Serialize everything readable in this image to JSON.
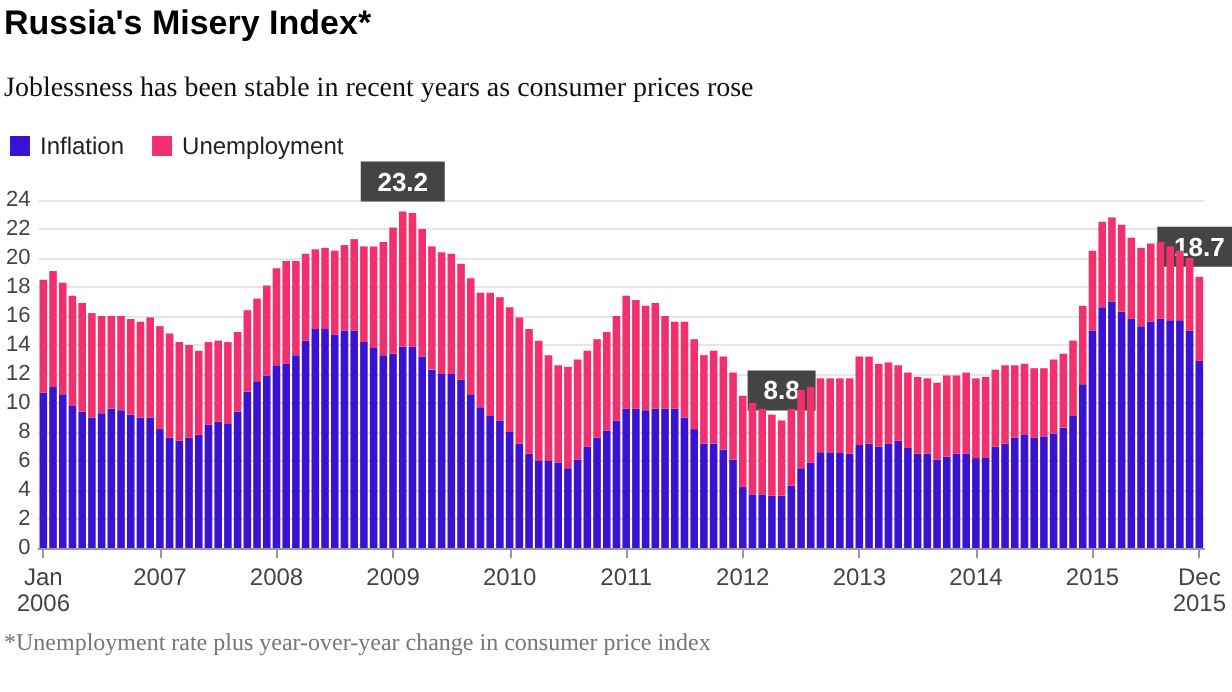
{
  "chart_data": {
    "type": "bar",
    "stacked": true,
    "title": "Russia's Misery Index*",
    "subtitle": "Joblessness has been stable in recent years as consumer prices rose",
    "annotations": [
      {
        "text": "23.2",
        "x": "2009-02",
        "y": 23.2
      },
      {
        "text": "8.8",
        "x": "2012-05",
        "y": 8.8
      },
      {
        "text": "18.7",
        "x": "2015-12",
        "y": 18.7
      },
      "*Unemployment rate plus year-over-year change in consumer price index"
    ],
    "x": [
      "2006-01",
      "2006-02",
      "2006-03",
      "2006-04",
      "2006-05",
      "2006-06",
      "2006-07",
      "2006-08",
      "2006-09",
      "2006-10",
      "2006-11",
      "2006-12",
      "2007-01",
      "2007-02",
      "2007-03",
      "2007-04",
      "2007-05",
      "2007-06",
      "2007-07",
      "2007-08",
      "2007-09",
      "2007-10",
      "2007-11",
      "2007-12",
      "2008-01",
      "2008-02",
      "2008-03",
      "2008-04",
      "2008-05",
      "2008-06",
      "2008-07",
      "2008-08",
      "2008-09",
      "2008-10",
      "2008-11",
      "2008-12",
      "2009-01",
      "2009-02",
      "2009-03",
      "2009-04",
      "2009-05",
      "2009-06",
      "2009-07",
      "2009-08",
      "2009-09",
      "2009-10",
      "2009-11",
      "2009-12",
      "2010-01",
      "2010-02",
      "2010-03",
      "2010-04",
      "2010-05",
      "2010-06",
      "2010-07",
      "2010-08",
      "2010-09",
      "2010-10",
      "2010-11",
      "2010-12",
      "2011-01",
      "2011-02",
      "2011-03",
      "2011-04",
      "2011-05",
      "2011-06",
      "2011-07",
      "2011-08",
      "2011-09",
      "2011-10",
      "2011-11",
      "2011-12",
      "2012-01",
      "2012-02",
      "2012-03",
      "2012-04",
      "2012-05",
      "2012-06",
      "2012-07",
      "2012-08",
      "2012-09",
      "2012-10",
      "2012-11",
      "2012-12",
      "2013-01",
      "2013-02",
      "2013-03",
      "2013-04",
      "2013-05",
      "2013-06",
      "2013-07",
      "2013-08",
      "2013-09",
      "2013-10",
      "2013-11",
      "2013-12",
      "2014-01",
      "2014-02",
      "2014-03",
      "2014-04",
      "2014-05",
      "2014-06",
      "2014-07",
      "2014-08",
      "2014-09",
      "2014-10",
      "2014-11",
      "2014-12",
      "2015-01",
      "2015-02",
      "2015-03",
      "2015-04",
      "2015-05",
      "2015-06",
      "2015-07",
      "2015-08",
      "2015-09",
      "2015-10",
      "2015-11",
      "2015-12"
    ],
    "xticks": [
      {
        "value": "2006-01",
        "label": "Jan 2006"
      },
      {
        "value": "2007-01",
        "label": "2007"
      },
      {
        "value": "2008-01",
        "label": "2008"
      },
      {
        "value": "2009-01",
        "label": "2009"
      },
      {
        "value": "2010-01",
        "label": "2010"
      },
      {
        "value": "2011-01",
        "label": "2011"
      },
      {
        "value": "2012-01",
        "label": "2012"
      },
      {
        "value": "2013-01",
        "label": "2013"
      },
      {
        "value": "2014-01",
        "label": "2014"
      },
      {
        "value": "2015-01",
        "label": "2015"
      },
      {
        "value": "2015-12",
        "label": "Dec 2015"
      }
    ],
    "xlim": [
      "2006-01",
      "2015-12"
    ],
    "ylim": [
      0,
      24
    ],
    "yticks": [
      0,
      2,
      4,
      6,
      8,
      10,
      12,
      14,
      16,
      18,
      20,
      22,
      24
    ],
    "grid": "y",
    "legend": "top left",
    "series": [
      {
        "name": "Inflation",
        "color": "#3a12d2",
        "values": [
          10.7,
          11.1,
          10.6,
          9.8,
          9.4,
          9.0,
          9.3,
          9.6,
          9.5,
          9.2,
          9.0,
          9.0,
          8.2,
          7.6,
          7.4,
          7.6,
          7.8,
          8.5,
          8.7,
          8.6,
          9.4,
          10.8,
          11.5,
          11.9,
          12.6,
          12.7,
          13.3,
          14.3,
          15.1,
          15.1,
          14.7,
          15.0,
          15.0,
          14.2,
          13.8,
          13.3,
          13.4,
          13.9,
          13.9,
          13.2,
          12.3,
          12.0,
          12.0,
          11.6,
          10.6,
          9.7,
          9.1,
          8.8,
          8.0,
          7.2,
          6.5,
          6.0,
          6.0,
          5.9,
          5.5,
          6.1,
          7.0,
          7.6,
          8.1,
          8.8,
          9.6,
          9.6,
          9.5,
          9.6,
          9.6,
          9.6,
          9.0,
          8.2,
          7.2,
          7.2,
          6.8,
          6.1,
          4.2,
          3.7,
          3.7,
          3.6,
          3.6,
          4.3,
          5.5,
          5.9,
          6.6,
          6.6,
          6.6,
          6.5,
          7.1,
          7.2,
          7.0,
          7.2,
          7.4,
          6.9,
          6.5,
          6.5,
          6.1,
          6.3,
          6.5,
          6.5,
          6.2,
          6.2,
          7.0,
          7.2,
          7.6,
          7.8,
          7.6,
          7.7,
          7.9,
          8.3,
          9.1,
          11.3,
          15.0,
          16.6,
          17.0,
          16.3,
          15.8,
          15.3,
          15.6,
          15.8,
          15.7,
          15.7,
          15.0,
          12.9
        ]
      },
      {
        "name": "Unemployment",
        "color": "#f2306e",
        "values": [
          7.8,
          8.0,
          7.7,
          7.6,
          7.5,
          7.2,
          6.7,
          6.4,
          6.5,
          6.6,
          6.6,
          6.9,
          7.1,
          7.2,
          6.8,
          6.4,
          5.8,
          5.7,
          5.6,
          5.6,
          5.5,
          5.6,
          5.7,
          6.2,
          6.7,
          7.1,
          6.5,
          6.0,
          5.5,
          5.6,
          5.8,
          5.9,
          6.3,
          6.6,
          7.0,
          7.8,
          8.7,
          9.3,
          9.2,
          8.8,
          8.5,
          8.4,
          8.3,
          8.0,
          8.0,
          7.9,
          8.5,
          8.5,
          8.6,
          8.7,
          8.6,
          8.3,
          7.3,
          6.7,
          7.0,
          6.9,
          6.6,
          6.8,
          6.8,
          7.2,
          7.8,
          7.5,
          7.2,
          7.3,
          6.4,
          6.0,
          6.6,
          6.2,
          6.1,
          6.4,
          6.4,
          6.0,
          6.3,
          6.3,
          5.9,
          5.6,
          5.2,
          5.3,
          5.4,
          5.2,
          5.1,
          5.1,
          5.1,
          5.2,
          6.1,
          6.0,
          5.7,
          5.6,
          5.2,
          5.2,
          5.3,
          5.2,
          5.3,
          5.6,
          5.4,
          5.6,
          5.5,
          5.6,
          5.3,
          5.4,
          5.0,
          4.9,
          4.8,
          4.7,
          5.1,
          5.1,
          5.2,
          5.4,
          5.5,
          5.9,
          5.8,
          6.0,
          5.6,
          5.4,
          5.4,
          5.3,
          5.1,
          4.8,
          5.0,
          5.8
        ]
      }
    ]
  }
}
